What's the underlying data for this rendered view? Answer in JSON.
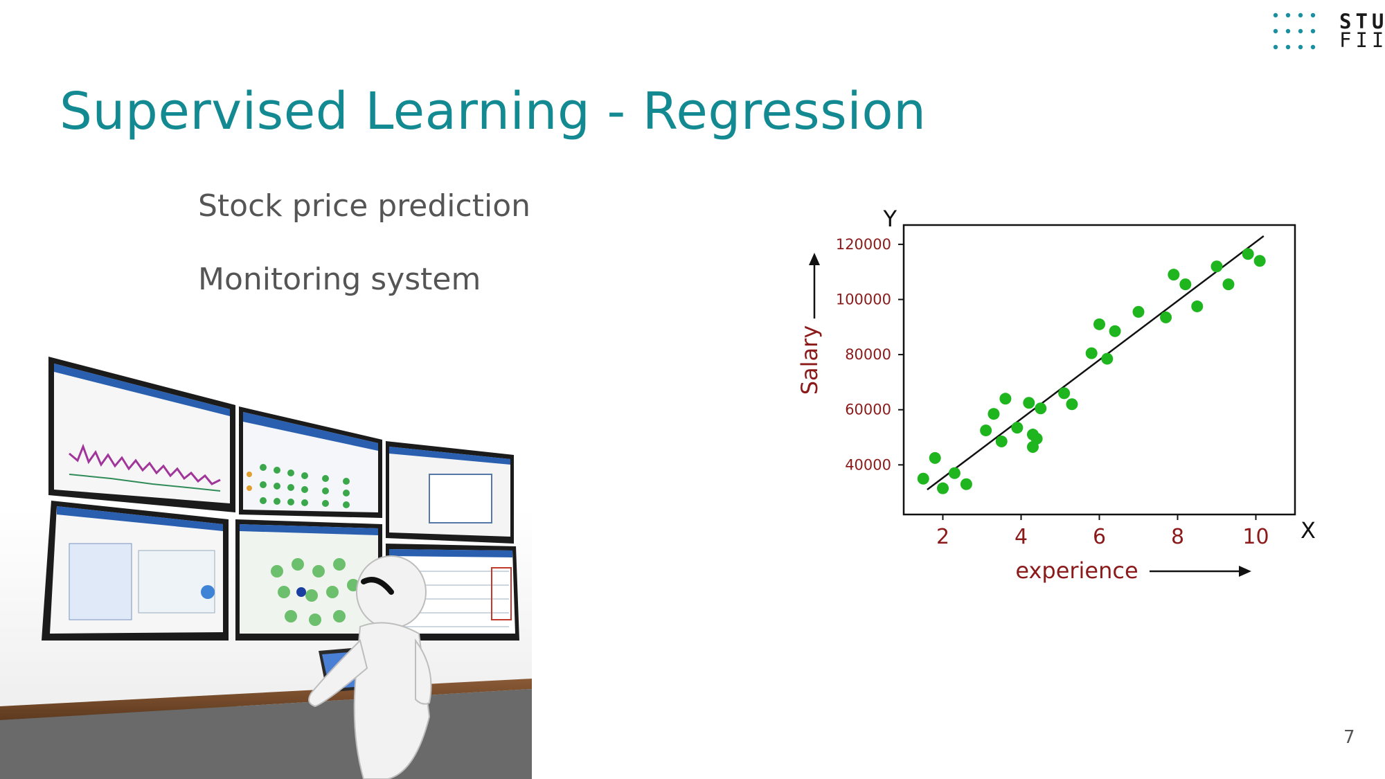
{
  "logo": {
    "line1": "STU",
    "line2": "FIIT"
  },
  "slide": {
    "title": "Supervised Learning - Regression",
    "bullets": [
      "Stock price prediction",
      "Monitoring system"
    ],
    "page_number": "7"
  },
  "colors": {
    "title": "#138a92",
    "bullet_text": "#555555",
    "points": "#1fb51f",
    "axis_labels": "#8b1a1a"
  },
  "illustration": {
    "description_icon": "monitoring-wall-icon"
  },
  "chart_data": {
    "type": "scatter",
    "title": "",
    "xlabel": "experience",
    "ylabel": "Salary",
    "x_axis_letter": "X",
    "y_axis_letter": "Y",
    "xlim": [
      1,
      11
    ],
    "ylim": [
      22000,
      127000
    ],
    "x_ticks": [
      2,
      4,
      6,
      8,
      10
    ],
    "x_tick_labels": [
      "2",
      "4",
      "6",
      "8",
      "10"
    ],
    "y_ticks": [
      40000,
      60000,
      80000,
      100000,
      120000
    ],
    "y_tick_labels": [
      "40000",
      "60000",
      "80000",
      "100000",
      "120000"
    ],
    "grid": false,
    "series": [
      {
        "points": [
          [
            1.5,
            35000
          ],
          [
            1.8,
            42500
          ],
          [
            2.0,
            31500
          ],
          [
            2.3,
            37000
          ],
          [
            2.6,
            33000
          ],
          [
            3.1,
            52500
          ],
          [
            3.3,
            58500
          ],
          [
            3.5,
            48500
          ],
          [
            3.6,
            64000
          ],
          [
            3.9,
            53500
          ],
          [
            4.2,
            62500
          ],
          [
            4.3,
            46500
          ],
          [
            4.3,
            51000
          ],
          [
            4.4,
            49500
          ],
          [
            4.5,
            60500
          ],
          [
            5.1,
            66000
          ],
          [
            5.3,
            62000
          ],
          [
            5.8,
            80500
          ],
          [
            6.0,
            91000
          ],
          [
            6.2,
            78500
          ],
          [
            6.4,
            88500
          ],
          [
            7.0,
            95500
          ],
          [
            7.7,
            93500
          ],
          [
            7.9,
            109000
          ],
          [
            8.2,
            105500
          ],
          [
            8.5,
            97500
          ],
          [
            9.0,
            112000
          ],
          [
            9.3,
            105500
          ],
          [
            9.8,
            116500
          ],
          [
            10.1,
            114000
          ]
        ]
      }
    ],
    "regression_line": {
      "x": [
        1.6,
        10.2
      ],
      "y": [
        31000,
        123000
      ]
    }
  }
}
